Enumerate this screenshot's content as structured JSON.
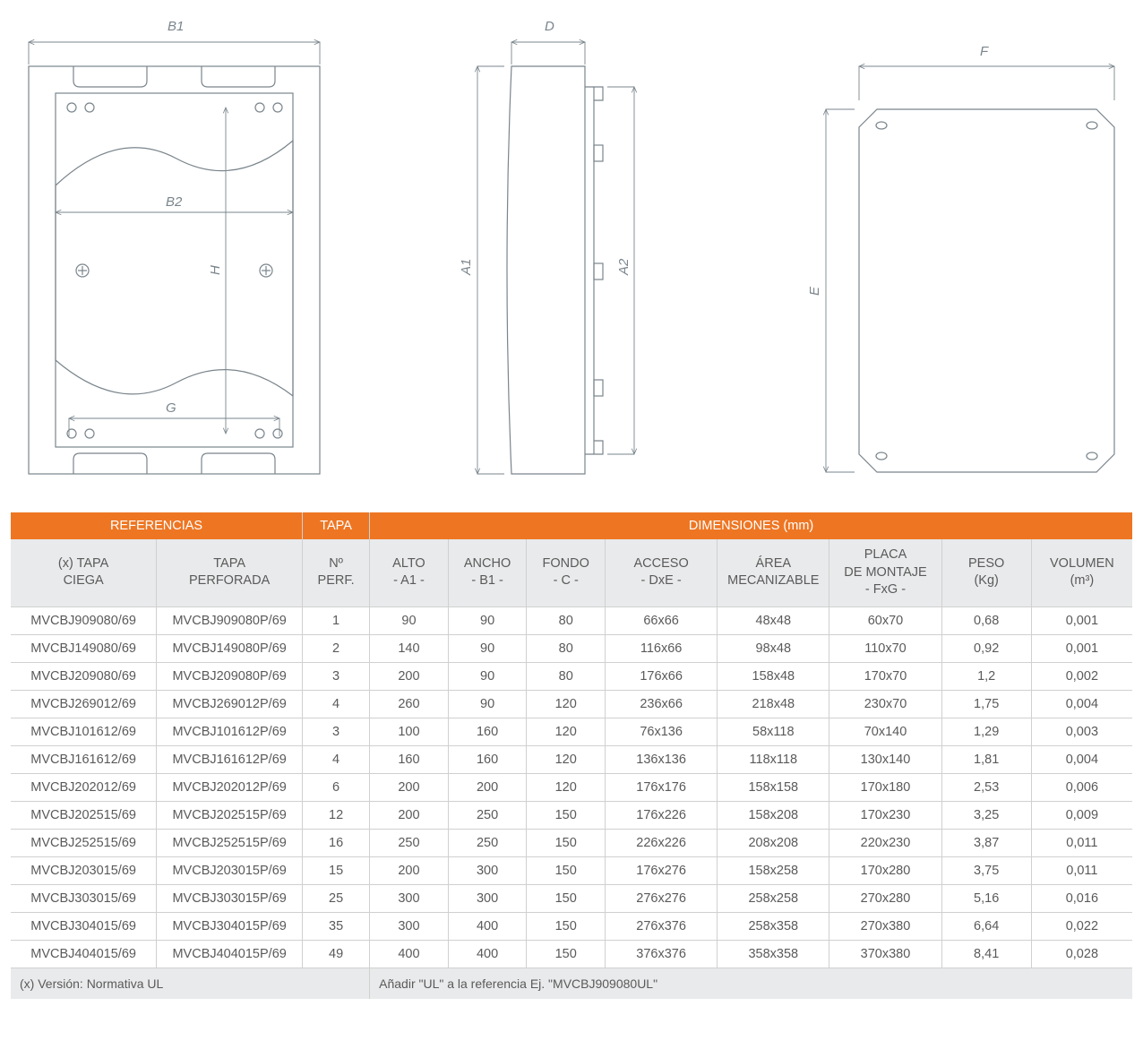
{
  "colors": {
    "header_bg": "#ee7623",
    "header_text": "#ffffff",
    "subheader_bg": "#e9eaeb",
    "body_text": "#5a5a5a",
    "rule": "#d0d0d0",
    "line": "#7a858c",
    "page_bg": "#ffffff"
  },
  "diagram_labels": {
    "B1": "B1",
    "B2": "B2",
    "G": "G",
    "H": "H",
    "D": "D",
    "A1": "A1",
    "A2": "A2",
    "F": "F",
    "E": "E"
  },
  "table": {
    "group_headers": {
      "referencias": "REFERENCIAS",
      "tapa": "TAPA",
      "dimensiones": "DIMENSIONES (mm)"
    },
    "col_headers": {
      "tapa_ciega_1": "(x) TAPA",
      "tapa_ciega_2": "CIEGA",
      "tapa_perf_1": "TAPA",
      "tapa_perf_2": "PERFORADA",
      "n_perf_1": "Nº",
      "n_perf_2": "PERF.",
      "alto_1": "ALTO",
      "alto_2": "- A1 -",
      "ancho_1": "ANCHO",
      "ancho_2": "- B1 -",
      "fondo_1": "FONDO",
      "fondo_2": "- C -",
      "acceso_1": "ACCESO",
      "acceso_2": "- DxE -",
      "area_1": "ÁREA",
      "area_2": "MECANIZABLE",
      "placa_1": "PLACA",
      "placa_2": "DE MONTAJE",
      "placa_3": "- FxG -",
      "peso_1": "PESO",
      "peso_2": "(Kg)",
      "vol_1": "VOLUMEN",
      "vol_2": "(m³)"
    },
    "rows": [
      {
        "c": [
          "MVCBJ909080/69",
          "MVCBJ909080P/69",
          "1",
          "90",
          "90",
          "80",
          "66x66",
          "48x48",
          "60x70",
          "0,68",
          "0,001"
        ]
      },
      {
        "c": [
          "MVCBJ149080/69",
          "MVCBJ149080P/69",
          "2",
          "140",
          "90",
          "80",
          "116x66",
          "98x48",
          "110x70",
          "0,92",
          "0,001"
        ]
      },
      {
        "c": [
          "MVCBJ209080/69",
          "MVCBJ209080P/69",
          "3",
          "200",
          "90",
          "80",
          "176x66",
          "158x48",
          "170x70",
          "1,2",
          "0,002"
        ]
      },
      {
        "c": [
          "MVCBJ269012/69",
          "MVCBJ269012P/69",
          "4",
          "260",
          "90",
          "120",
          "236x66",
          "218x48",
          "230x70",
          "1,75",
          "0,004"
        ]
      },
      {
        "c": [
          "MVCBJ101612/69",
          "MVCBJ101612P/69",
          "3",
          "100",
          "160",
          "120",
          "76x136",
          "58x118",
          "70x140",
          "1,29",
          "0,003"
        ]
      },
      {
        "c": [
          "MVCBJ161612/69",
          "MVCBJ161612P/69",
          "4",
          "160",
          "160",
          "120",
          "136x136",
          "118x118",
          "130x140",
          "1,81",
          "0,004"
        ]
      },
      {
        "c": [
          "MVCBJ202012/69",
          "MVCBJ202012P/69",
          "6",
          "200",
          "200",
          "120",
          "176x176",
          "158x158",
          "170x180",
          "2,53",
          "0,006"
        ]
      },
      {
        "c": [
          "MVCBJ202515/69",
          "MVCBJ202515P/69",
          "12",
          "200",
          "250",
          "150",
          "176x226",
          "158x208",
          "170x230",
          "3,25",
          "0,009"
        ]
      },
      {
        "c": [
          "MVCBJ252515/69",
          "MVCBJ252515P/69",
          "16",
          "250",
          "250",
          "150",
          "226x226",
          "208x208",
          "220x230",
          "3,87",
          "0,011"
        ]
      },
      {
        "c": [
          "MVCBJ203015/69",
          "MVCBJ203015P/69",
          "15",
          "200",
          "300",
          "150",
          "176x276",
          "158x258",
          "170x280",
          "3,75",
          "0,011"
        ]
      },
      {
        "c": [
          "MVCBJ303015/69",
          "MVCBJ303015P/69",
          "25",
          "300",
          "300",
          "150",
          "276x276",
          "258x258",
          "270x280",
          "5,16",
          "0,016"
        ]
      },
      {
        "c": [
          "MVCBJ304015/69",
          "MVCBJ304015P/69",
          "35",
          "300",
          "400",
          "150",
          "276x376",
          "258x358",
          "270x380",
          "6,64",
          "0,022"
        ]
      },
      {
        "c": [
          "MVCBJ404015/69",
          "MVCBJ404015P/69",
          "49",
          "400",
          "400",
          "150",
          "376x376",
          "358x358",
          "370x380",
          "8,41",
          "0,028"
        ]
      }
    ],
    "footer": {
      "left": "(x) Versión: Normativa UL",
      "right": "Añadir \"UL\" a la referencia Ej. \"MVCBJ909080UL\""
    },
    "col_widths_pct": [
      13,
      13,
      6,
      7,
      7,
      7,
      10,
      10,
      10,
      8,
      9
    ]
  }
}
